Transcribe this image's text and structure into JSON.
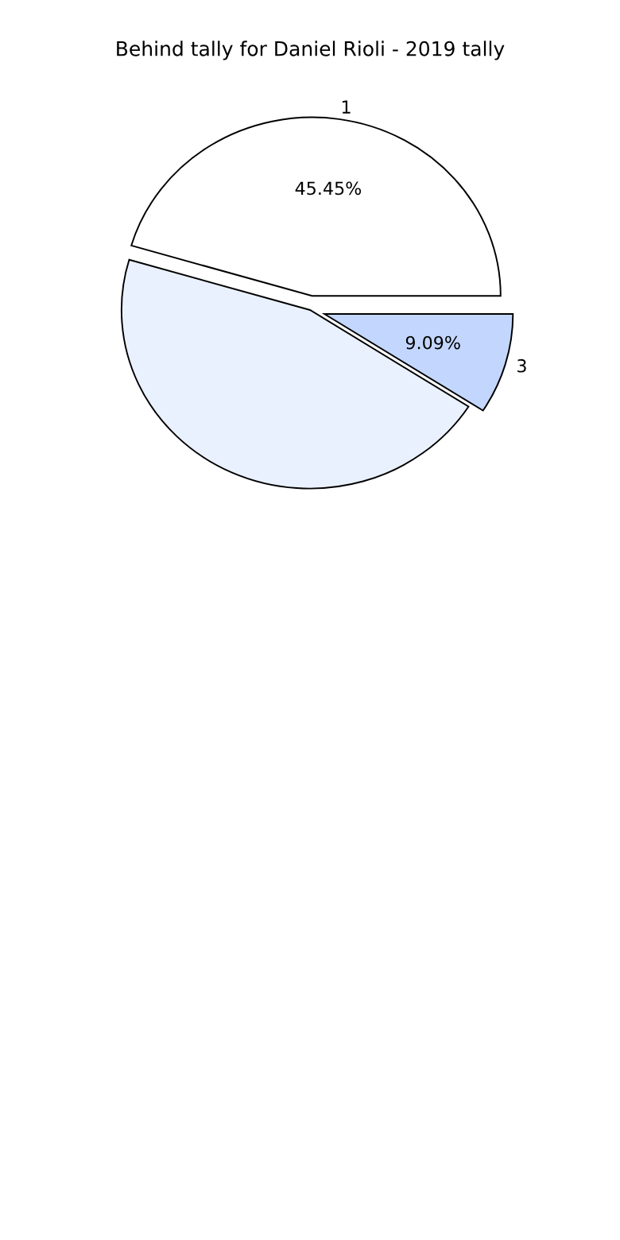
{
  "chart_data": {
    "type": "pie",
    "title": "Behind tally for Daniel Rioli - 2019 tally",
    "categories": [
      "1",
      null,
      "3"
    ],
    "values": [
      45.45,
      45.45,
      9.09
    ],
    "value_labels": [
      "45.45%",
      null,
      "9.09%"
    ],
    "colors": [
      "#ffffff",
      "#eaf1fe",
      "#c3d7fe"
    ]
  }
}
